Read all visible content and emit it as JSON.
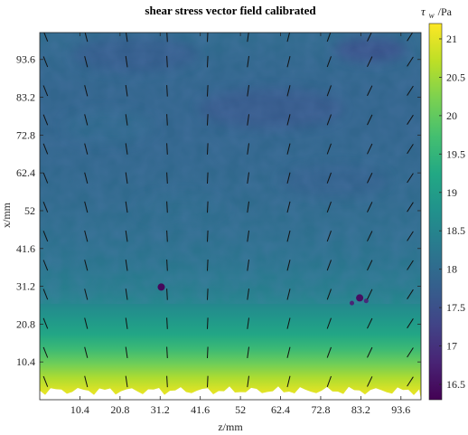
{
  "chart_data": {
    "type": "heatmap",
    "title": "shear stress vector field calibrated",
    "xlabel": "z/mm",
    "ylabel": "x/mm",
    "x_ticks": [
      "10.4",
      "20.8",
      "31.2",
      "41.6",
      "52",
      "62.4",
      "72.8",
      "83.2",
      "93.6"
    ],
    "y_ticks": [
      "10.4",
      "20.8",
      "31.2",
      "41.6",
      "52",
      "62.4",
      "72.8",
      "83.2",
      "93.6"
    ],
    "x_tick_values": [
      10.4,
      20.8,
      31.2,
      41.6,
      52,
      62.4,
      72.8,
      83.2,
      93.6
    ],
    "y_tick_values": [
      10.4,
      20.8,
      31.2,
      41.6,
      52,
      62.4,
      72.8,
      83.2,
      93.6
    ],
    "xlim": [
      0,
      98.8
    ],
    "ylim": [
      0,
      101
    ],
    "colorbar": {
      "label": "τ",
      "label_sub": "w",
      "label_unit": "/Pa",
      "ticks": [
        "16.5",
        "17",
        "17.5",
        "18",
        "18.5",
        "19",
        "19.5",
        "20",
        "20.5",
        "21"
      ],
      "tick_values": [
        16.5,
        17,
        17.5,
        18,
        18.5,
        19,
        19.5,
        20,
        20.5,
        21
      ],
      "range": [
        16.3,
        21.2
      ],
      "colormap": "viridis"
    },
    "field_profile": {
      "x_mm": [
        2,
        6,
        10,
        14,
        18,
        22,
        26,
        30,
        34,
        38,
        45,
        55,
        65,
        75,
        85,
        93,
        99
      ],
      "tau_Pa": [
        21.0,
        20.6,
        20.1,
        19.6,
        19.2,
        18.9,
        18.6,
        18.4,
        18.3,
        18.2,
        18.1,
        18.0,
        17.95,
        17.9,
        17.9,
        17.95,
        18.0
      ]
    },
    "low_spots": [
      {
        "z": 31.5,
        "x": 31.0,
        "tau": 16.4
      },
      {
        "z": 82.9,
        "x": 28.0,
        "tau": 16.5
      },
      {
        "z": 80.9,
        "x": 26.6,
        "tau": 16.8
      },
      {
        "z": 84.6,
        "x": 27.2,
        "tau": 16.9
      }
    ],
    "vector_columns_z": [
      1.5,
      12,
      22.5,
      33,
      43.5,
      54,
      64.5,
      75,
      85.5,
      96
    ],
    "vector_rows_x": [
      5,
      13,
      21,
      29,
      37,
      45,
      53,
      61,
      69,
      77,
      85,
      93,
      100
    ],
    "vector_tilt_deg": [
      -22,
      -14,
      -8,
      -3,
      3,
      8,
      14,
      20,
      26,
      33
    ]
  }
}
